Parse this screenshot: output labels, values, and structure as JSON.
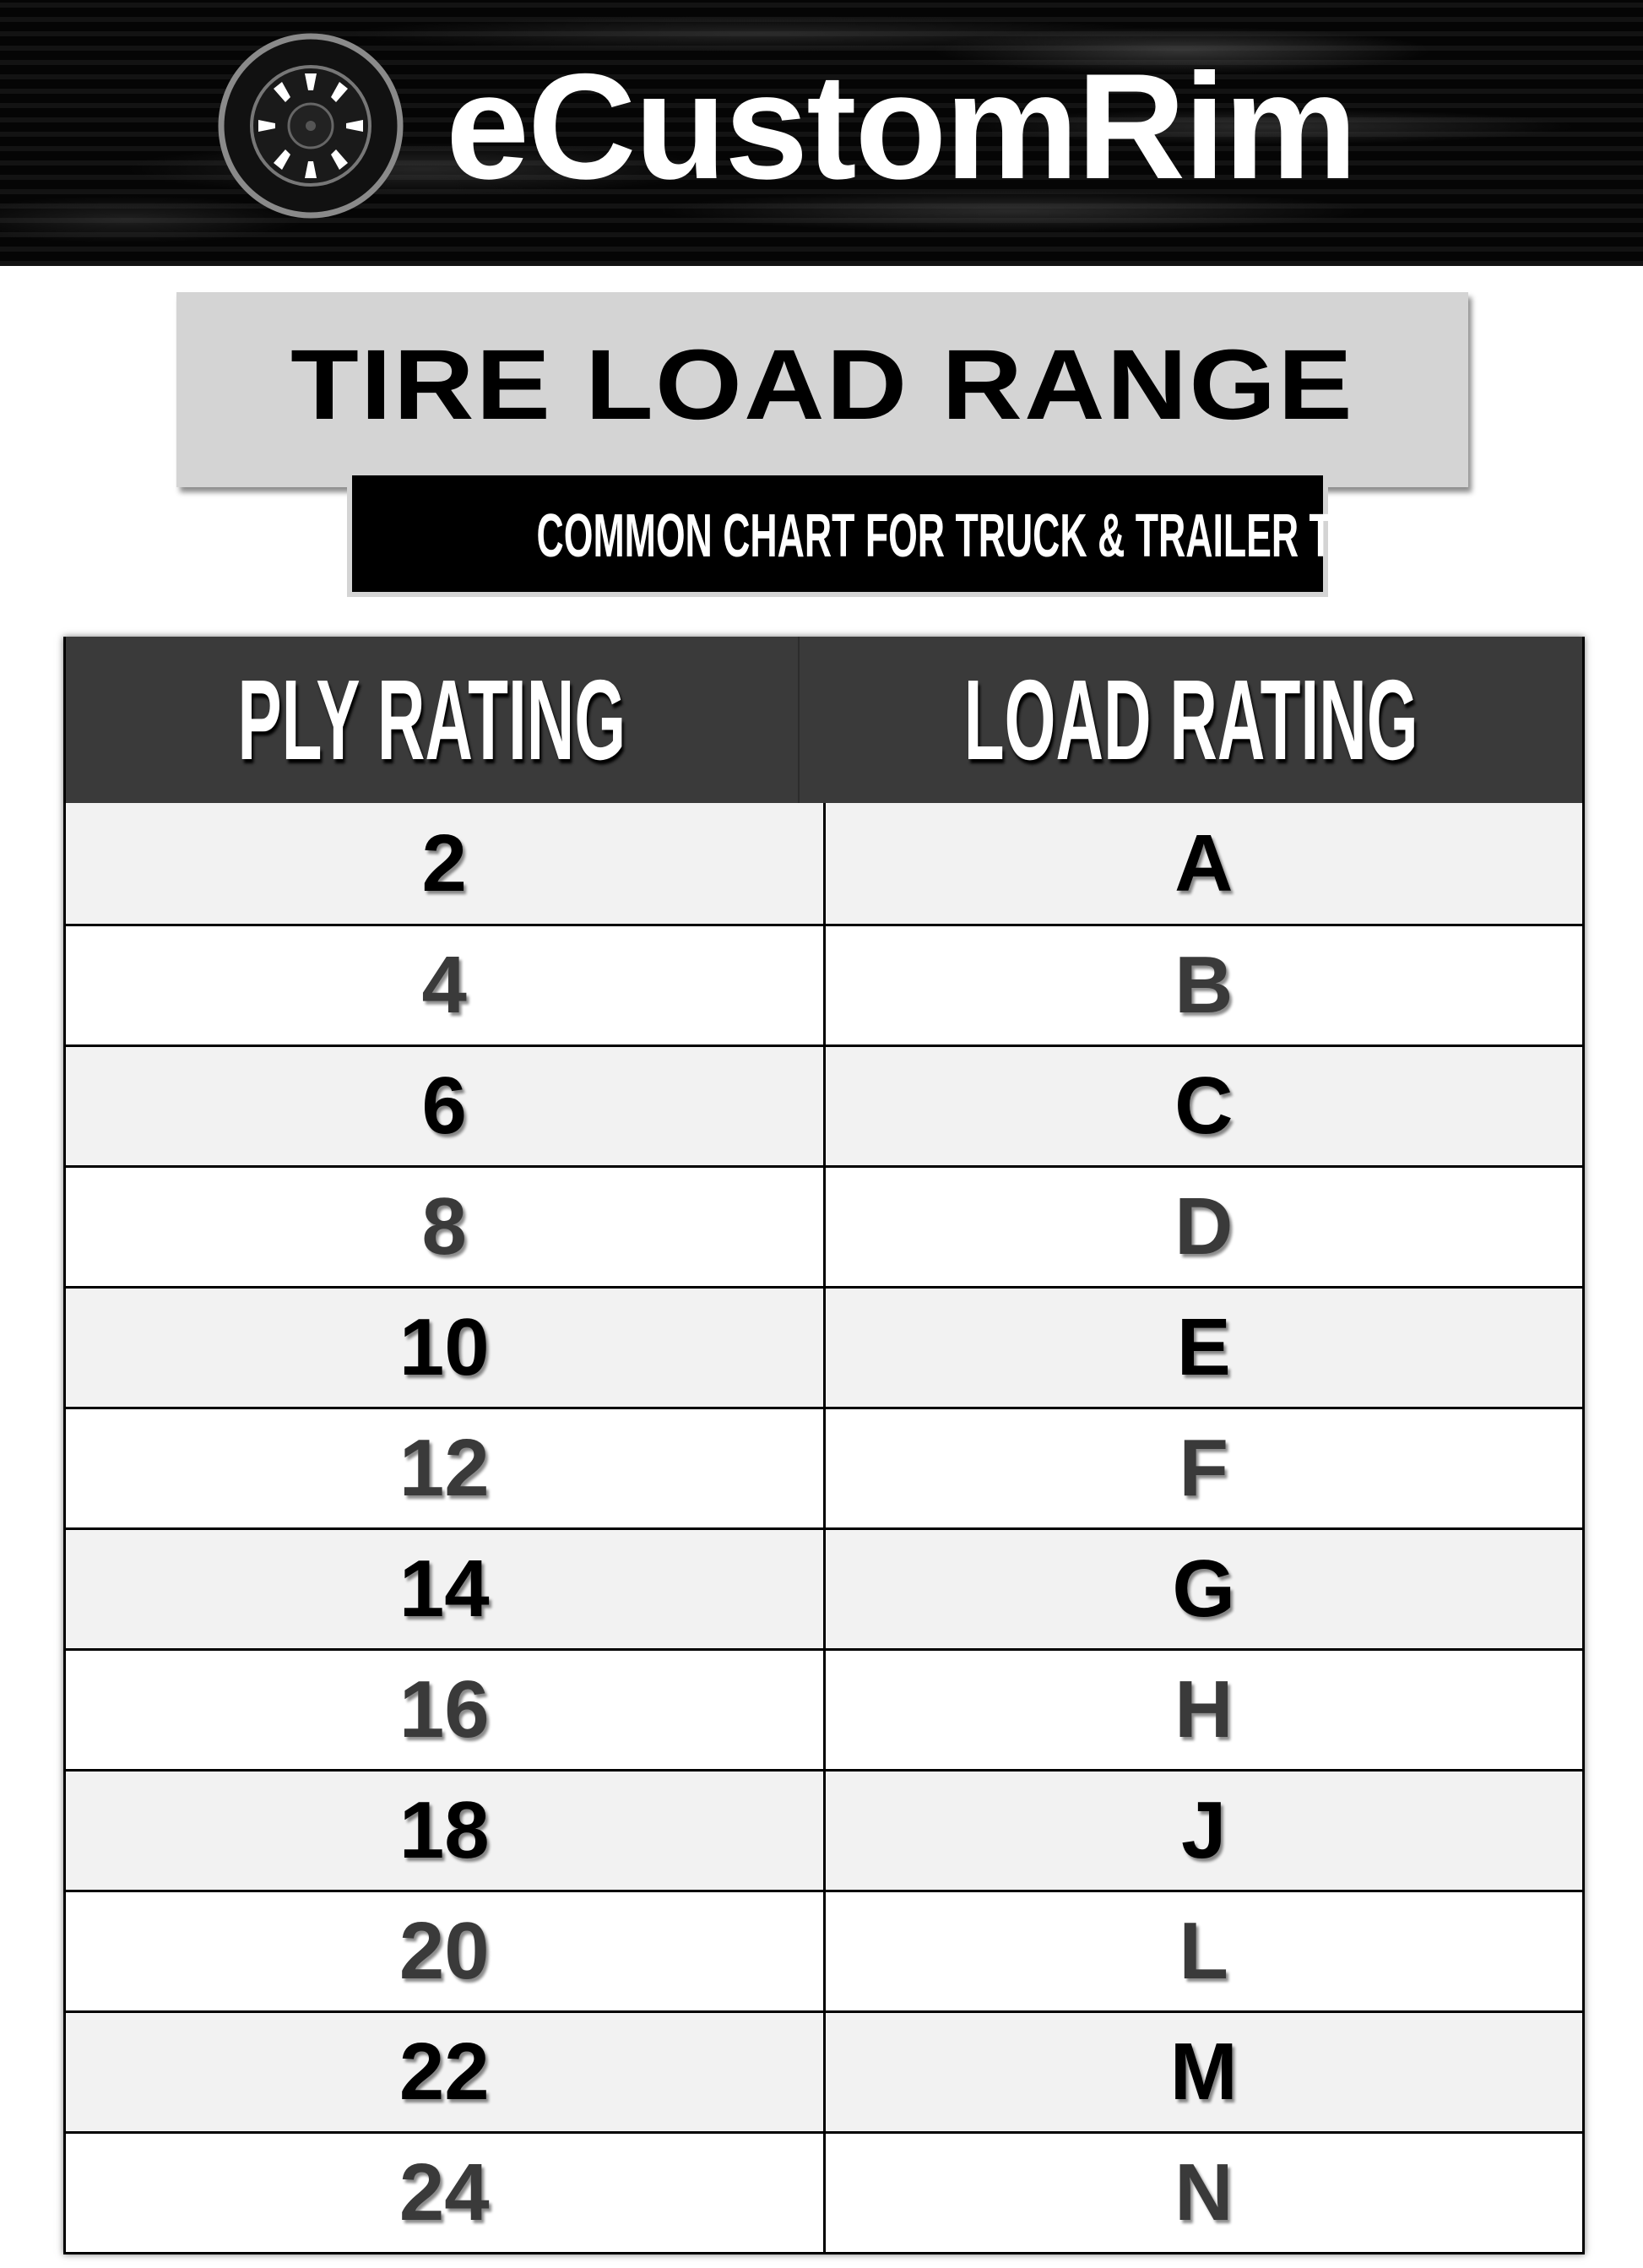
{
  "header": {
    "brand": "eCustomRim",
    "logo_icon": "tire-wheel-icon"
  },
  "title": "TIRE LOAD RANGE",
  "subtitle": "COMMON CHART FOR TRUCK & TRAILER TIRES",
  "table": {
    "columns": [
      "PLY RATING",
      "LOAD RATING"
    ],
    "rows": [
      [
        "2",
        "A"
      ],
      [
        "4",
        "B"
      ],
      [
        "6",
        "C"
      ],
      [
        "8",
        "D"
      ],
      [
        "10",
        "E"
      ],
      [
        "12",
        "F"
      ],
      [
        "14",
        "G"
      ],
      [
        "16",
        "H"
      ],
      [
        "18",
        "J"
      ],
      [
        "20",
        "L"
      ],
      [
        "22",
        "M"
      ],
      [
        "24",
        "N"
      ]
    ]
  },
  "colors": {
    "header_bg": "#3a3a3a",
    "title_box": "#d4d4d4",
    "row_alt": "#f2f2f2"
  }
}
